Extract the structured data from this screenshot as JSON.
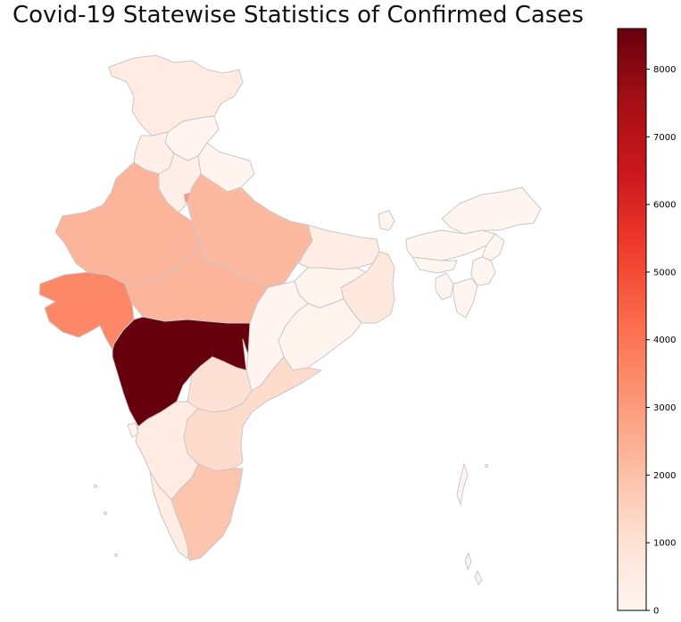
{
  "title": "Covid-19 Statewise Statistics of Confirmed Cases",
  "colormap": {
    "name": "Reds",
    "min": 0,
    "max": 8600,
    "stops": [
      "#fff5f0",
      "#fee0d2",
      "#fcbba1",
      "#fc9272",
      "#fb6a4a",
      "#ef3b2c",
      "#cb181d",
      "#a50f15",
      "#67000d"
    ],
    "ticks": [
      "0",
      "1000",
      "2000",
      "3000",
      "4000",
      "5000",
      "6000",
      "7000",
      "8000"
    ],
    "tick_values": [
      0,
      1000,
      2000,
      3000,
      4000,
      5000,
      6000,
      7000,
      8000
    ]
  },
  "chart_data": {
    "type": "choropleth",
    "title": "Covid-19 Statewise Statistics of Confirmed Cases",
    "color_scale": "Reds",
    "value_range": [
      0,
      8600
    ],
    "regions": [
      {
        "name": "Jammu & Kashmir",
        "value": 500
      },
      {
        "name": "Himachal Pradesh",
        "value": 40
      },
      {
        "name": "Punjab",
        "value": 300
      },
      {
        "name": "Uttarakhand",
        "value": 60
      },
      {
        "name": "Haryana",
        "value": 300
      },
      {
        "name": "Delhi",
        "value": 3100
      },
      {
        "name": "Rajasthan",
        "value": 2300
      },
      {
        "name": "Uttar Pradesh",
        "value": 2200
      },
      {
        "name": "Bihar",
        "value": 400
      },
      {
        "name": "Sikkim",
        "value": 0
      },
      {
        "name": "Arunachal Pradesh",
        "value": 10
      },
      {
        "name": "Assam",
        "value": 40
      },
      {
        "name": "Meghalaya",
        "value": 12
      },
      {
        "name": "Nagaland",
        "value": 0
      },
      {
        "name": "Manipur",
        "value": 2
      },
      {
        "name": "Mizoram",
        "value": 1
      },
      {
        "name": "Tripura",
        "value": 2
      },
      {
        "name": "West Bengal",
        "value": 700
      },
      {
        "name": "Jharkhand",
        "value": 100
      },
      {
        "name": "Odisha",
        "value": 120
      },
      {
        "name": "Chhattisgarh",
        "value": 40
      },
      {
        "name": "Madhya Pradesh",
        "value": 2300
      },
      {
        "name": "Gujarat",
        "value": 3500
      },
      {
        "name": "Maharashtra",
        "value": 8600
      },
      {
        "name": "Telangana",
        "value": 1000
      },
      {
        "name": "Andhra Pradesh",
        "value": 1200
      },
      {
        "name": "Karnataka",
        "value": 500
      },
      {
        "name": "Goa",
        "value": 7
      },
      {
        "name": "Kerala",
        "value": 480
      },
      {
        "name": "Tamil Nadu",
        "value": 1900
      }
    ]
  }
}
